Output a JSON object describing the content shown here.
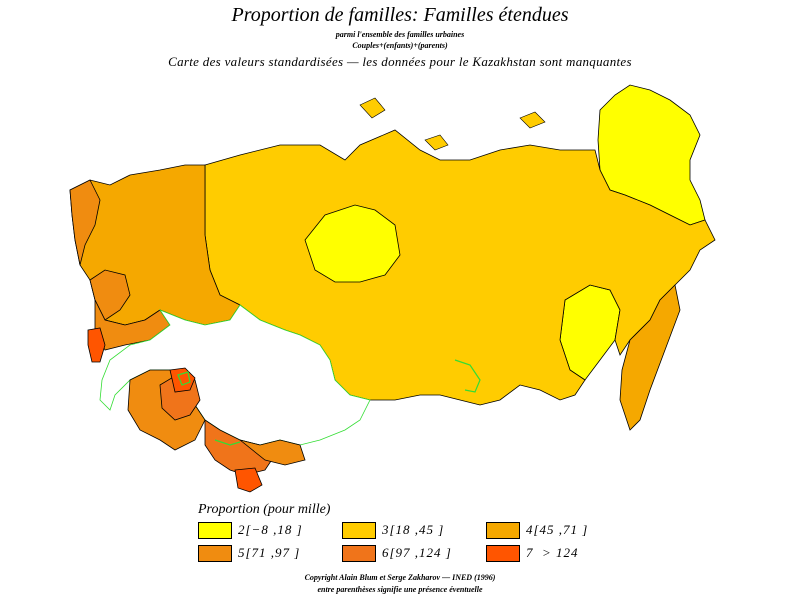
{
  "title": "Proportion de familles: Familles étendues",
  "subtitle1": "parmi l'ensemble des familles urbaines",
  "subtitle2": "Couples+(enfants)+(parents)",
  "subtitle3": "Carte des valeurs standardisées — les données pour le Kazakhstan sont manquantes",
  "legend": {
    "title": "Proportion (pour mille)",
    "items": [
      {
        "label": "2[−8 ,18 ]",
        "color": "#ffff00"
      },
      {
        "label": "3[18 ,45 ]",
        "color": "#ffcc00"
      },
      {
        "label": "4[45 ,71 ]",
        "color": "#f5a800"
      },
      {
        "label": "5[71 ,97 ]",
        "color": "#f08c10"
      },
      {
        "label": "6[97 ,124 ]",
        "color": "#f0741a"
      },
      {
        "label": "7  > 124",
        "color": "#ff5500"
      }
    ]
  },
  "copyright": "Copyright Alain Blum et Serge Zakharov — INED (1996)",
  "note": "entre parenthèses signifie une présence éventuelle",
  "map_colors": {
    "class2": "#ffff00",
    "class3": "#ffcc00",
    "class4": "#f5a800",
    "class5": "#f08c10",
    "class6": "#f0741a",
    "class7": "#ff5500",
    "missing": "#ffffff",
    "water_border": "#33dd33"
  }
}
